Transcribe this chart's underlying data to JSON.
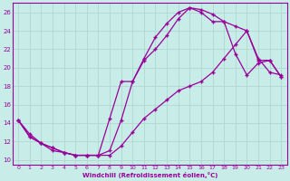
{
  "xlabel": "Windchill (Refroidissement éolien,°C)",
  "bg_color": "#c8ede8",
  "line_color": "#990099",
  "grid_color": "#b0d8d0",
  "xlim": [
    -0.5,
    23.5
  ],
  "ylim": [
    9.5,
    27.0
  ],
  "xticks": [
    0,
    1,
    2,
    3,
    4,
    5,
    6,
    7,
    8,
    9,
    10,
    11,
    12,
    13,
    14,
    15,
    16,
    17,
    18,
    19,
    20,
    21,
    22,
    23
  ],
  "yticks": [
    10,
    12,
    14,
    16,
    18,
    20,
    22,
    24,
    26
  ],
  "line1_x": [
    0,
    1,
    2,
    3,
    4,
    5,
    6,
    7,
    8,
    9,
    10,
    11,
    12,
    13,
    14,
    15,
    16,
    17,
    18,
    19,
    20,
    21,
    22,
    23
  ],
  "line1_y": [
    14.3,
    12.5,
    11.8,
    11.0,
    10.8,
    10.5,
    10.5,
    10.5,
    11.0,
    14.3,
    18.5,
    21.0,
    23.3,
    24.8,
    26.0,
    26.5,
    26.3,
    25.8,
    25.0,
    24.5,
    24.0,
    20.8,
    20.8,
    19.0
  ],
  "line2_x": [
    0,
    1,
    2,
    3,
    4,
    5,
    6,
    7,
    8,
    9,
    10,
    11,
    12,
    13,
    14,
    15,
    16,
    17,
    18,
    19,
    20,
    21,
    22,
    23
  ],
  "line2_y": [
    14.3,
    12.8,
    11.8,
    11.3,
    10.8,
    10.5,
    10.5,
    10.5,
    10.5,
    11.5,
    13.0,
    14.5,
    15.5,
    16.5,
    17.5,
    18.0,
    18.5,
    19.5,
    21.0,
    22.5,
    24.0,
    21.0,
    19.5,
    19.2
  ],
  "line3_x": [
    0,
    1,
    2,
    3,
    4,
    5,
    6,
    7,
    8,
    9,
    10,
    11,
    12,
    13,
    14,
    15,
    16,
    17,
    18,
    19,
    20,
    21,
    22,
    23
  ],
  "line3_y": [
    14.3,
    12.5,
    11.8,
    11.3,
    10.8,
    10.5,
    10.5,
    10.5,
    14.5,
    18.5,
    18.5,
    20.8,
    22.0,
    23.5,
    25.3,
    26.5,
    26.0,
    25.0,
    25.0,
    21.5,
    19.2,
    20.5,
    20.8,
    19.0
  ]
}
